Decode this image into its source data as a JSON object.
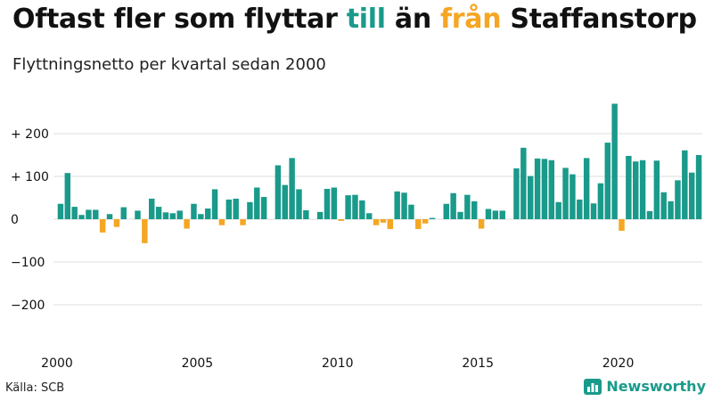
{
  "title": {
    "part1": "Oftast fler som flyttar ",
    "word_in": "till",
    "part2": " än ",
    "word_out": "från",
    "part3": " Staffanstorp"
  },
  "subtitle": "Flyttningsnetto per kvartal sedan 2000",
  "source": "Källa: SCB",
  "brand": {
    "name": "Newsworthy",
    "icon": "bar-chart-icon"
  },
  "colors": {
    "positive": "#1a9a8a",
    "negative": "#f5a623",
    "grid": "#dddddd",
    "text": "#111111"
  },
  "chart_data": {
    "type": "bar",
    "title": "",
    "xlabel": "",
    "ylabel": "",
    "ylim": [
      -290,
      290
    ],
    "grid": true,
    "legend": "none",
    "yticks": [
      {
        "value": 200,
        "label": "+ 200"
      },
      {
        "value": 100,
        "label": "+ 100"
      },
      {
        "value": 0,
        "label": "0"
      },
      {
        "value": -100,
        "label": "−100"
      },
      {
        "value": -200,
        "label": "−200"
      }
    ],
    "xticks": [
      {
        "year": 2000,
        "label": "2000"
      },
      {
        "year": 2005,
        "label": "2005"
      },
      {
        "year": 2010,
        "label": "2010"
      },
      {
        "year": 2015,
        "label": "2015"
      },
      {
        "year": 2020,
        "label": "2020"
      }
    ],
    "start": "2000-Q1",
    "values": [
      36,
      108,
      29,
      10,
      22,
      22,
      -31,
      12,
      -18,
      28,
      0,
      20,
      -56,
      48,
      29,
      16,
      14,
      20,
      -22,
      36,
      12,
      25,
      70,
      -14,
      46,
      48,
      -14,
      40,
      74,
      52,
      0,
      126,
      80,
      143,
      70,
      21,
      0,
      17,
      71,
      74,
      -4,
      56,
      57,
      44,
      14,
      -14,
      -8,
      -23,
      65,
      62,
      34,
      -23,
      -10,
      3,
      0,
      36,
      61,
      17,
      57,
      42,
      -22,
      24,
      20,
      20,
      0,
      119,
      167,
      101,
      142,
      141,
      138,
      40,
      120,
      105,
      46,
      143,
      37,
      84,
      179,
      270,
      -27,
      148,
      135,
      138,
      19,
      137,
      63,
      42,
      91,
      161,
      109,
      150
    ]
  }
}
